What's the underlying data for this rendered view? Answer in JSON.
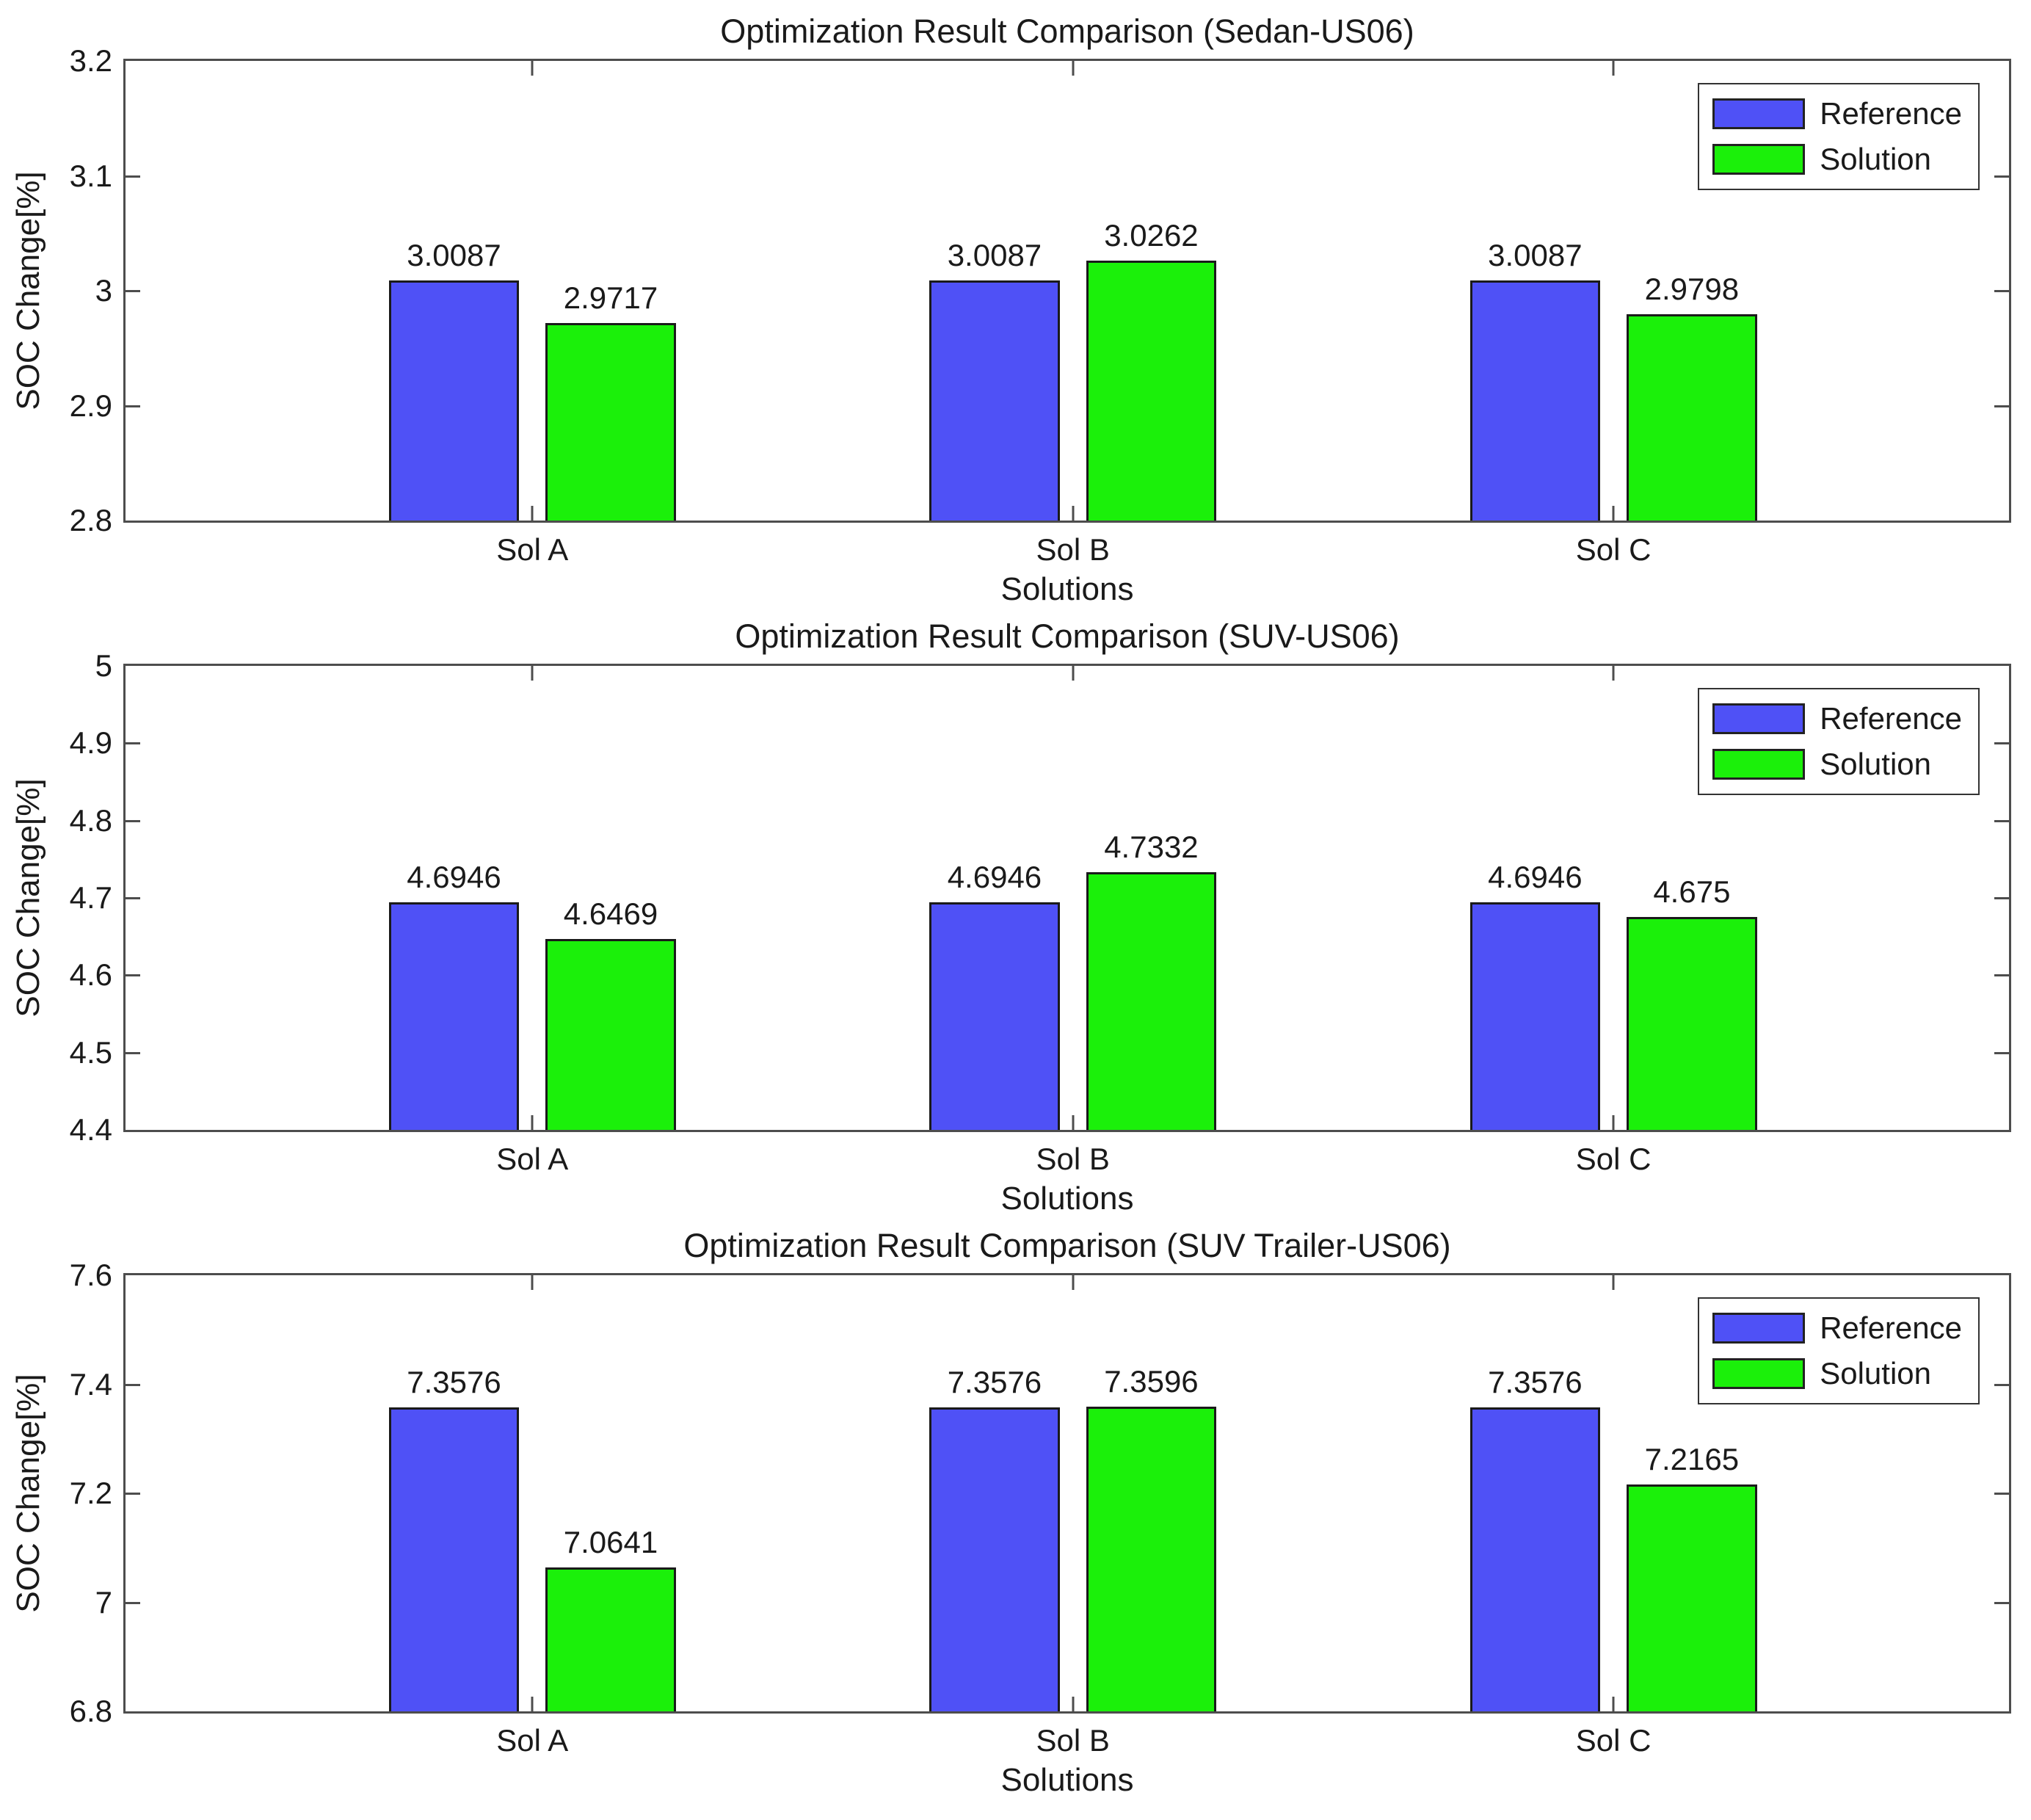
{
  "figure": {
    "background": "#ffffff",
    "axis_color": "#4d4d4d",
    "text_color": "#1a1a1a",
    "series_colors": {
      "reference": "#4f51f6",
      "solution": "#1bf00a"
    }
  },
  "chart_data": [
    {
      "type": "bar",
      "title": "Optimization Result Comparison (Sedan-US06)",
      "xlabel": "Solutions",
      "ylabel": "SOC Change[%]",
      "categories": [
        "Sol A",
        "Sol B",
        "Sol C"
      ],
      "series": [
        {
          "name": "Reference",
          "color_key": "reference",
          "values": [
            3.0087,
            3.0087,
            3.0087
          ],
          "labels": [
            "3.0087",
            "3.0087",
            "3.0087"
          ]
        },
        {
          "name": "Solution",
          "color_key": "solution",
          "values": [
            2.9717,
            3.0262,
            2.9798
          ],
          "labels": [
            "2.9717",
            "3.0262",
            "2.9798"
          ]
        }
      ],
      "ylim": [
        2.8,
        3.2
      ],
      "yticks": [
        2.8,
        2.9,
        3.0,
        3.1,
        3.2
      ],
      "ytick_labels": [
        "2.8",
        "2.9",
        "3",
        "3.1",
        "3.2"
      ],
      "grid": false,
      "legend": {
        "position": "top-right",
        "entries": [
          "Reference",
          "Solution"
        ]
      }
    },
    {
      "type": "bar",
      "title": "Optimization Result Comparison (SUV-US06)",
      "xlabel": "Solutions",
      "ylabel": "SOC Change[%]",
      "categories": [
        "Sol A",
        "Sol B",
        "Sol C"
      ],
      "series": [
        {
          "name": "Reference",
          "color_key": "reference",
          "values": [
            4.6946,
            4.6946,
            4.6946
          ],
          "labels": [
            "4.6946",
            "4.6946",
            "4.6946"
          ]
        },
        {
          "name": "Solution",
          "color_key": "solution",
          "values": [
            4.6469,
            4.7332,
            4.675
          ],
          "labels": [
            "4.6469",
            "4.7332",
            "4.675"
          ]
        }
      ],
      "ylim": [
        4.4,
        5.0
      ],
      "yticks": [
        4.4,
        4.5,
        4.6,
        4.7,
        4.8,
        4.9,
        5.0
      ],
      "ytick_labels": [
        "4.4",
        "4.5",
        "4.6",
        "4.7",
        "4.8",
        "4.9",
        "5"
      ],
      "grid": false,
      "legend": {
        "position": "top-right",
        "entries": [
          "Reference",
          "Solution"
        ]
      }
    },
    {
      "type": "bar",
      "title": "Optimization Result Comparison (SUV Trailer-US06)",
      "xlabel": "Solutions",
      "ylabel": "SOC Change[%]",
      "categories": [
        "Sol A",
        "Sol B",
        "Sol C"
      ],
      "series": [
        {
          "name": "Reference",
          "color_key": "reference",
          "values": [
            7.3576,
            7.3576,
            7.3576
          ],
          "labels": [
            "7.3576",
            "7.3576",
            "7.3576"
          ]
        },
        {
          "name": "Solution",
          "color_key": "solution",
          "values": [
            7.0641,
            7.3596,
            7.2165
          ],
          "labels": [
            "7.0641",
            "7.3596",
            "7.2165"
          ]
        }
      ],
      "ylim": [
        6.8,
        7.6
      ],
      "yticks": [
        6.8,
        7.0,
        7.2,
        7.4,
        7.6
      ],
      "ytick_labels": [
        "6.8",
        "7",
        "7.2",
        "7.4",
        "7.6"
      ],
      "grid": false,
      "legend": {
        "position": "top-right",
        "entries": [
          "Reference",
          "Solution"
        ]
      }
    }
  ]
}
